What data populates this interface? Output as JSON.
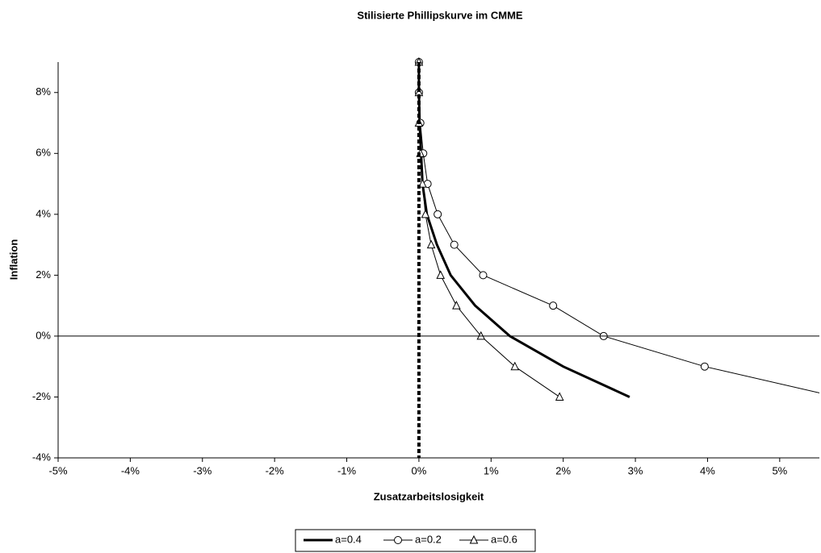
{
  "chart_data": {
    "type": "line",
    "title": "Stilisierte Phillipskurve im CMME",
    "x_label": "Zusatzarbeitslosigkeit",
    "y_label": "Inflation",
    "xlim": [
      -5,
      5.55
    ],
    "ylim": [
      -4,
      9
    ],
    "xticks": [
      {
        "value": -5,
        "label": "-5%"
      },
      {
        "value": -4,
        "label": "-4%"
      },
      {
        "value": -3,
        "label": "-3%"
      },
      {
        "value": -2,
        "label": "-2%"
      },
      {
        "value": -1,
        "label": "-1%"
      },
      {
        "value": 0,
        "label": "0%"
      },
      {
        "value": 1,
        "label": "1%"
      },
      {
        "value": 2,
        "label": "2%"
      },
      {
        "value": 3,
        "label": "3%"
      },
      {
        "value": 4,
        "label": "4%"
      },
      {
        "value": 5,
        "label": "5%"
      }
    ],
    "yticks": [
      {
        "value": -4,
        "label": "-4%"
      },
      {
        "value": -2,
        "label": "-2%"
      },
      {
        "value": 0,
        "label": "0%"
      },
      {
        "value": 2,
        "label": "2%"
      },
      {
        "value": 4,
        "label": "4%"
      },
      {
        "value": 6,
        "label": "6%"
      },
      {
        "value": 8,
        "label": "8%"
      }
    ],
    "legend": "bottom",
    "series": [
      {
        "name": "a=0.4",
        "color": "#000000",
        "marker": "none",
        "x": [
          0,
          0,
          0.01,
          0.03,
          0.05,
          0.11,
          0.25,
          0.44,
          0.78,
          1.26,
          2.0,
          2.92
        ],
        "values": [
          9,
          8,
          7,
          6,
          5,
          4,
          3,
          2,
          1,
          0,
          -1,
          -2
        ]
      },
      {
        "name": "a=0.2",
        "color": "#000000",
        "marker": "circle",
        "x": [
          0,
          0,
          0.02,
          0.06,
          0.12,
          0.26,
          0.49,
          0.89,
          1.86,
          2.56,
          3.96,
          5.8
        ],
        "values": [
          9,
          8,
          7,
          6,
          5,
          4,
          3,
          2,
          1,
          0,
          -1,
          -2
        ]
      },
      {
        "name": "a=0.6",
        "color": "#000000",
        "marker": "triangle",
        "x": [
          0,
          0,
          0,
          0.02,
          0.05,
          0.09,
          0.17,
          0.3,
          0.52,
          0.86,
          1.33,
          1.95
        ],
        "values": [
          9,
          8,
          7,
          6,
          5,
          4,
          3,
          2,
          1,
          0,
          -1,
          -2
        ]
      }
    ]
  }
}
